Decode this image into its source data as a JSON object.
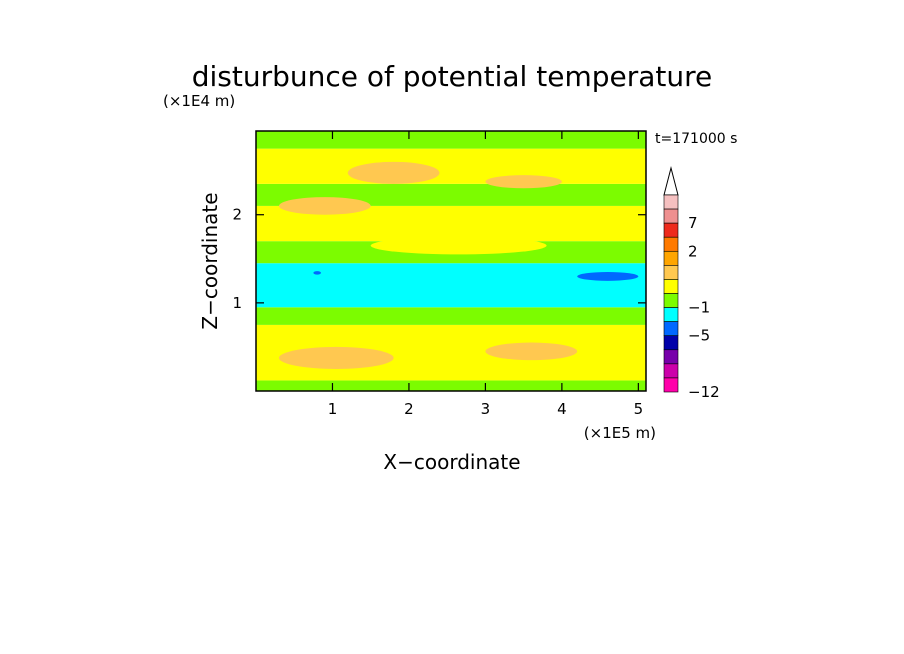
{
  "chart_data": {
    "type": "heatmap",
    "title": "disturbunce of potential temperature",
    "time_label": "t=171000 s",
    "xlabel": "X−coordinate",
    "ylabel": "Z−coordinate",
    "x_unit": "(×1E5 m)",
    "y_unit": "(×1E4 m)",
    "xlim": [
      0,
      5.1
    ],
    "ylim": [
      0,
      2.95
    ],
    "x_ticks": [
      1,
      2,
      3,
      4,
      5
    ],
    "x_tick_labels": [
      "1",
      "2",
      "3",
      "4",
      "5"
    ],
    "y_ticks": [
      1,
      2
    ],
    "y_tick_labels": [
      "1",
      "2"
    ],
    "colorbar": {
      "extend": "max",
      "labeled_levels": [
        {
          "label": "7",
          "color": "#ee2a1c"
        },
        {
          "label": "2",
          "color": "#ffa500"
        },
        {
          "label": "−1",
          "color": "#00ffff"
        },
        {
          "label": "−5",
          "color": "#0000aa"
        },
        {
          "label": "−12",
          "color": "#ff00aa"
        }
      ],
      "colors": [
        "#f5c0c0",
        "#ef9090",
        "#ee2a1c",
        "#ff7a00",
        "#ffa500",
        "#ffc850",
        "#ffff00",
        "#7cfc00",
        "#00ffff",
        "#0068ff",
        "#0000aa",
        "#7700aa",
        "#cc00aa",
        "#ff00aa"
      ]
    },
    "bands": [
      {
        "z": [
          0.0,
          0.12
        ],
        "level": "#7cfc00"
      },
      {
        "z": [
          0.12,
          0.75
        ],
        "level": "#ffff00"
      },
      {
        "z": [
          0.75,
          0.95
        ],
        "level": "#7cfc00"
      },
      {
        "z": [
          0.95,
          1.45
        ],
        "level": "#00ffff"
      },
      {
        "z": [
          1.45,
          1.7
        ],
        "level": "#7cfc00"
      },
      {
        "z": [
          1.7,
          2.1
        ],
        "level": "#ffff00"
      },
      {
        "z": [
          2.1,
          2.35
        ],
        "level": "#7cfc00"
      },
      {
        "z": [
          2.35,
          2.75
        ],
        "level": "#ffff00"
      },
      {
        "z": [
          2.75,
          2.95
        ],
        "level": "#7cfc00"
      }
    ],
    "patches": [
      {
        "x": [
          0.3,
          1.8
        ],
        "z": [
          0.25,
          0.5
        ],
        "level": "#ffc850"
      },
      {
        "x": [
          3.0,
          4.2
        ],
        "z": [
          0.35,
          0.55
        ],
        "level": "#ffc850"
      },
      {
        "x": [
          1.5,
          3.8
        ],
        "z": [
          1.55,
          1.75
        ],
        "level": "#ffff00"
      },
      {
        "x": [
          0.3,
          1.5
        ],
        "z": [
          2.0,
          2.2
        ],
        "level": "#ffc850"
      },
      {
        "x": [
          1.2,
          2.4
        ],
        "z": [
          2.35,
          2.6
        ],
        "level": "#ffc850"
      },
      {
        "x": [
          3.0,
          4.0
        ],
        "z": [
          2.3,
          2.45
        ],
        "level": "#ffc850"
      },
      {
        "x": [
          4.2,
          5.0
        ],
        "z": [
          1.25,
          1.35
        ],
        "level": "#0068ff"
      },
      {
        "x": [
          0.75,
          0.85
        ],
        "z": [
          1.32,
          1.36
        ],
        "level": "#0068ff"
      }
    ]
  }
}
